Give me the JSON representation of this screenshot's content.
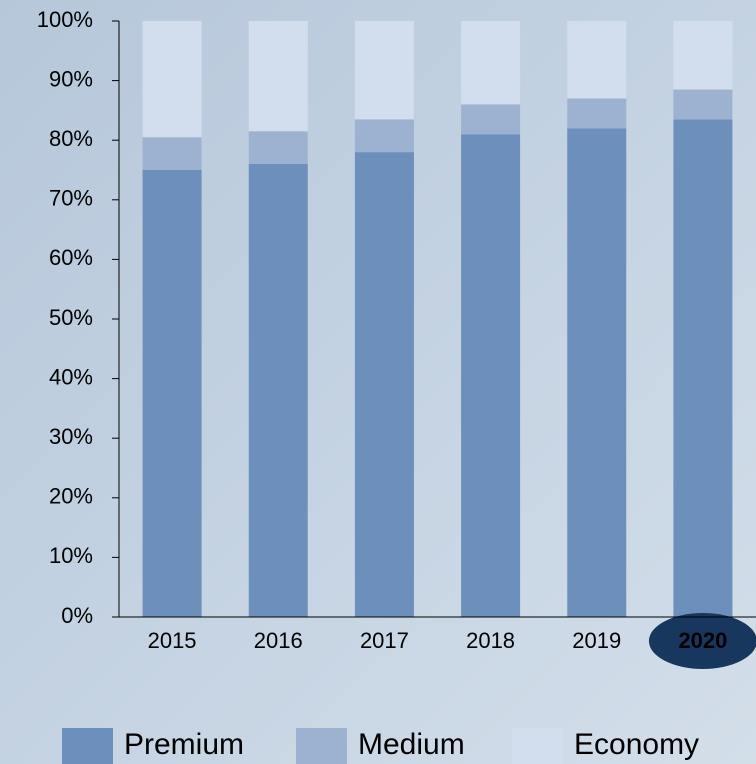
{
  "chart_data": {
    "type": "stacked_bar",
    "categories": [
      "2015",
      "2016",
      "2017",
      "2018",
      "2019",
      "2020"
    ],
    "series": [
      {
        "name": "Premium",
        "color": "#6d8fbb",
        "values": [
          75,
          76,
          78,
          81,
          82,
          83.5
        ]
      },
      {
        "name": "Medium",
        "color": "#9db1d0",
        "values": [
          5.5,
          5.5,
          5.5,
          5,
          5,
          5
        ]
      },
      {
        "name": "Economy",
        "color": "#d2deed",
        "values": [
          19.5,
          18.5,
          16.5,
          14,
          13,
          11.5
        ]
      }
    ],
    "ylim": [
      0,
      100
    ],
    "yticks": [
      {
        "value": 0,
        "label": "0%"
      },
      {
        "value": 10,
        "label": "10%"
      },
      {
        "value": 20,
        "label": "20%"
      },
      {
        "value": 30,
        "label": "30%"
      },
      {
        "value": 40,
        "label": "40%"
      },
      {
        "value": 50,
        "label": "50%"
      },
      {
        "value": 60,
        "label": "60%"
      },
      {
        "value": 70,
        "label": "70%"
      },
      {
        "value": 80,
        "label": "80%"
      },
      {
        "value": 90,
        "label": "90%"
      },
      {
        "value": 100,
        "label": "100%"
      }
    ],
    "highlighted_index": 5,
    "legend": "bottom"
  }
}
